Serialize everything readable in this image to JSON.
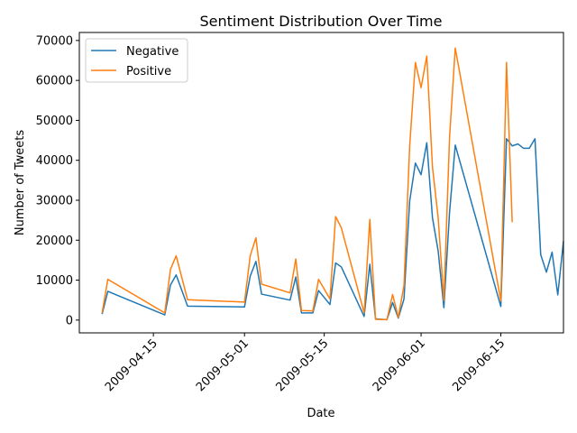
{
  "chart_data": {
    "type": "line",
    "title": "Sentiment Distribution Over Time",
    "xlabel": "Date",
    "ylabel": "Number of Tweets",
    "x_ticks": [
      "2009-04-15",
      "2009-05-01",
      "2009-05-15",
      "2009-06-01",
      "2009-06-15"
    ],
    "y_ticks": [
      0,
      10000,
      20000,
      30000,
      40000,
      50000,
      60000,
      70000
    ],
    "xlim": [
      "2009-04-02",
      "2009-06-26"
    ],
    "ylim": [
      -3200,
      72000
    ],
    "grid": false,
    "legend_position": "upper-left",
    "series": [
      {
        "name": "Negative",
        "color": "#1f77b4",
        "points": [
          [
            "2009-04-06",
            1500
          ],
          [
            "2009-04-07",
            7200
          ],
          [
            "2009-04-17",
            1300
          ],
          [
            "2009-04-18",
            8800
          ],
          [
            "2009-04-19",
            11300
          ],
          [
            "2009-04-21",
            3500
          ],
          [
            "2009-05-01",
            3300
          ],
          [
            "2009-05-02",
            11000
          ],
          [
            "2009-05-03",
            14700
          ],
          [
            "2009-05-04",
            6500
          ],
          [
            "2009-05-09",
            5000
          ],
          [
            "2009-05-10",
            10800
          ],
          [
            "2009-05-11",
            1800
          ],
          [
            "2009-05-13",
            1800
          ],
          [
            "2009-05-14",
            7400
          ],
          [
            "2009-05-16",
            3900
          ],
          [
            "2009-05-17",
            14300
          ],
          [
            "2009-05-18",
            13300
          ],
          [
            "2009-05-22",
            900
          ],
          [
            "2009-05-23",
            14000
          ],
          [
            "2009-05-24",
            300
          ],
          [
            "2009-05-26",
            100
          ],
          [
            "2009-05-27",
            4400
          ],
          [
            "2009-05-28",
            500
          ],
          [
            "2009-05-29",
            5300
          ],
          [
            "2009-05-30",
            29800
          ],
          [
            "2009-05-31",
            39300
          ],
          [
            "2009-06-01",
            36400
          ],
          [
            "2009-06-02",
            44400
          ],
          [
            "2009-06-03",
            25600
          ],
          [
            "2009-06-04",
            17300
          ],
          [
            "2009-06-05",
            3100
          ],
          [
            "2009-06-06",
            27000
          ],
          [
            "2009-06-07",
            43800
          ],
          [
            "2009-06-15",
            3400
          ],
          [
            "2009-06-16",
            45400
          ],
          [
            "2009-06-17",
            43600
          ],
          [
            "2009-06-18",
            44100
          ],
          [
            "2009-06-19",
            43000
          ],
          [
            "2009-06-20",
            43000
          ],
          [
            "2009-06-21",
            45400
          ],
          [
            "2009-06-22",
            16400
          ],
          [
            "2009-06-23",
            12000
          ],
          [
            "2009-06-24",
            17000
          ],
          [
            "2009-06-25",
            6300
          ],
          [
            "2009-06-26",
            19800
          ]
        ]
      },
      {
        "name": "Positive",
        "color": "#ff7f0e",
        "points": [
          [
            "2009-04-06",
            1800
          ],
          [
            "2009-04-07",
            10200
          ],
          [
            "2009-04-17",
            1800
          ],
          [
            "2009-04-18",
            12700
          ],
          [
            "2009-04-19",
            16100
          ],
          [
            "2009-04-21",
            5100
          ],
          [
            "2009-05-01",
            4500
          ],
          [
            "2009-05-02",
            16100
          ],
          [
            "2009-05-03",
            20600
          ],
          [
            "2009-05-04",
            9000
          ],
          [
            "2009-05-09",
            6800
          ],
          [
            "2009-05-10",
            15300
          ],
          [
            "2009-05-11",
            2400
          ],
          [
            "2009-05-13",
            2300
          ],
          [
            "2009-05-14",
            10200
          ],
          [
            "2009-05-16",
            5300
          ],
          [
            "2009-05-17",
            25900
          ],
          [
            "2009-05-18",
            23100
          ],
          [
            "2009-05-22",
            1800
          ],
          [
            "2009-05-23",
            25200
          ],
          [
            "2009-05-24",
            200
          ],
          [
            "2009-05-26",
            100
          ],
          [
            "2009-05-27",
            6400
          ],
          [
            "2009-05-28",
            700
          ],
          [
            "2009-05-29",
            8700
          ],
          [
            "2009-05-30",
            43600
          ],
          [
            "2009-05-31",
            64500
          ],
          [
            "2009-06-01",
            58200
          ],
          [
            "2009-06-02",
            66100
          ],
          [
            "2009-06-03",
            38300
          ],
          [
            "2009-06-04",
            25600
          ],
          [
            "2009-06-05",
            4900
          ],
          [
            "2009-06-06",
            45800
          ],
          [
            "2009-06-07",
            68100
          ],
          [
            "2009-06-15",
            4800
          ],
          [
            "2009-06-16",
            64500
          ],
          [
            "2009-06-17",
            24500
          ]
        ]
      }
    ]
  }
}
